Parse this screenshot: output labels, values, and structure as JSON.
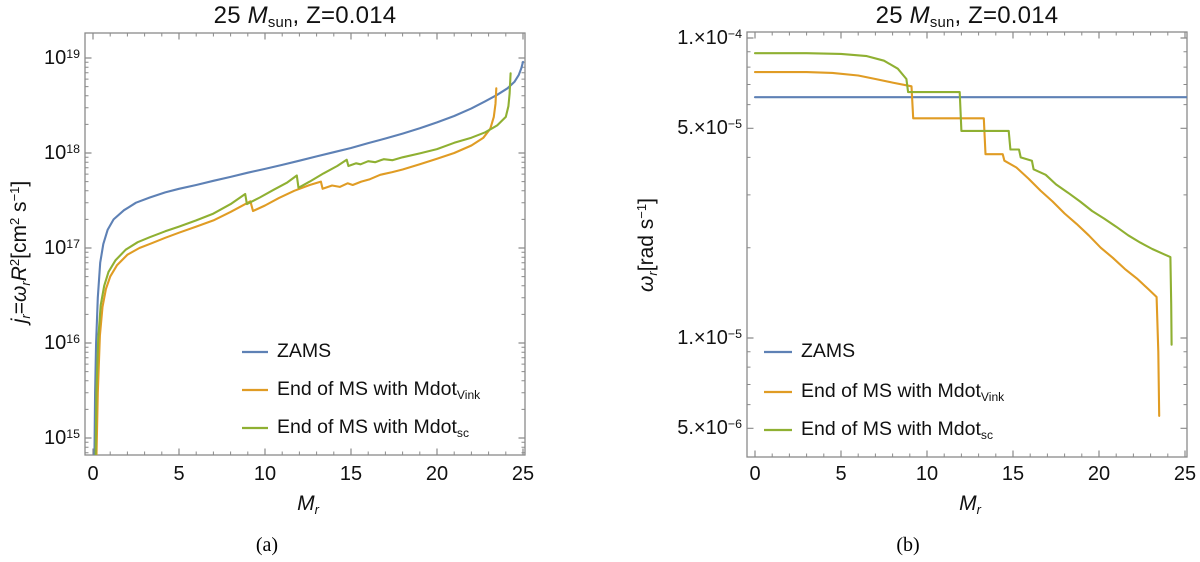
{
  "figure": {
    "background": "#ffffff",
    "captions": {
      "a": "(a)",
      "b": "(b)"
    },
    "frame_color": "#8a8a8a",
    "text_color": "#111111"
  },
  "chart_data": [
    {
      "id": "a",
      "type": "line",
      "title_parts": [
        {
          "t": "25 "
        },
        {
          "t": "M",
          "i": 1
        },
        {
          "t": "sun",
          "b": "sub"
        },
        {
          "t": ", Z=0.014"
        }
      ],
      "xlabel_parts": [
        {
          "t": "M",
          "i": 1
        },
        {
          "t": "r",
          "i": 1,
          "b": "sub"
        }
      ],
      "ylabel_parts": [
        {
          "t": "j",
          "i": 1
        },
        {
          "t": "r",
          "i": 1,
          "b": "sub"
        },
        {
          "t": "="
        },
        {
          "t": "ω",
          "i": 1
        },
        {
          "t": "r",
          "i": 1,
          "b": "sub"
        },
        {
          "t": "R",
          "i": 1
        },
        {
          "t": "2",
          "b": "sup"
        },
        {
          "t": "[cm"
        },
        {
          "t": "2",
          "b": "sup"
        },
        {
          "t": " s"
        },
        {
          "t": "−1",
          "b": "sup"
        },
        {
          "t": "]"
        }
      ],
      "xlim": [
        -0.47,
        25.12
      ],
      "ylog": true,
      "ylim": [
        660000000000000.0,
        1.85e+19
      ],
      "grid": false,
      "xticks": {
        "major": [
          0,
          5,
          10,
          15,
          20,
          25
        ],
        "minor_step": 1
      },
      "yticks_major": [
        {
          "v": 1e+19,
          "parts": [
            {
              "t": "10"
            },
            {
              "t": "19",
              "b": "sup"
            }
          ]
        },
        {
          "v": 1e+18,
          "parts": [
            {
              "t": "10"
            },
            {
              "t": "18",
              "b": "sup"
            }
          ]
        },
        {
          "v": 1e+17,
          "parts": [
            {
              "t": "10"
            },
            {
              "t": "17",
              "b": "sup"
            }
          ]
        },
        {
          "v": 1e+16,
          "parts": [
            {
              "t": "10"
            },
            {
              "t": "16",
              "b": "sup"
            }
          ]
        },
        {
          "v": 1000000000000000.0,
          "parts": [
            {
              "t": "10"
            },
            {
              "t": "15",
              "b": "sup"
            }
          ]
        }
      ],
      "legend_pos": "inside lower middle",
      "series": [
        {
          "name_parts": [
            {
              "t": "ZAMS"
            }
          ],
          "color": "#5E81B5",
          "points": [
            [
              0.08,
              600000000000000.0
            ],
            [
              0.12,
              3000000000000000.0
            ],
            [
              0.18,
              1e+16
            ],
            [
              0.28,
              3e+16
            ],
            [
              0.42,
              7e+16
            ],
            [
              0.6,
              1.1e+17
            ],
            [
              0.85,
              1.55e+17
            ],
            [
              1.2,
              2e+17
            ],
            [
              1.8,
              2.5e+17
            ],
            [
              2.5,
              3e+17
            ],
            [
              3.3,
              3.4e+17
            ],
            [
              4.2,
              3.85e+17
            ],
            [
              5,
              4.2e+17
            ],
            [
              6,
              4.6e+17
            ],
            [
              7,
              5.1e+17
            ],
            [
              8,
              5.6e+17
            ],
            [
              9,
              6.2e+17
            ],
            [
              10,
              6.8e+17
            ],
            [
              11,
              7.5e+17
            ],
            [
              12,
              8.3e+17
            ],
            [
              13,
              9.2e+17
            ],
            [
              14,
              1.02e+18
            ],
            [
              15,
              1.13e+18
            ],
            [
              16,
              1.27e+18
            ],
            [
              17,
              1.42e+18
            ],
            [
              18,
              1.6e+18
            ],
            [
              19,
              1.82e+18
            ],
            [
              20,
              2.1e+18
            ],
            [
              21,
              2.45e+18
            ],
            [
              22,
              2.95e+18
            ],
            [
              22.8,
              3.5e+18
            ],
            [
              23.5,
              4.1e+18
            ],
            [
              24.1,
              4.8e+18
            ],
            [
              24.5,
              5.6e+18
            ],
            [
              24.75,
              6.6e+18
            ],
            [
              24.9,
              7.8e+18
            ],
            [
              25,
              9.1e+18
            ]
          ]
        },
        {
          "name_parts": [
            {
              "t": "End of MS with Mdot"
            },
            {
              "t": "Vink",
              "b": "sub"
            }
          ],
          "color": "#E09C24",
          "points": [
            [
              0.2,
              600000000000000.0
            ],
            [
              0.28,
              3000000000000000.0
            ],
            [
              0.4,
              1.2e+16
            ],
            [
              0.55,
              2.4e+16
            ],
            [
              0.75,
              3.7e+16
            ],
            [
              1.0,
              5e+16
            ],
            [
              1.4,
              6.6e+16
            ],
            [
              2.0,
              8.5e+16
            ],
            [
              2.7,
              1e+17
            ],
            [
              3.4,
              1.12e+17
            ],
            [
              4.2,
              1.28e+17
            ],
            [
              5,
              1.45e+17
            ],
            [
              6,
              1.68e+17
            ],
            [
              7,
              1.95e+17
            ],
            [
              8,
              2.4e+17
            ],
            [
              9.15,
              3.1e+17
            ],
            [
              9.3,
              2.45e+17
            ],
            [
              10,
              2.8e+17
            ],
            [
              10.8,
              3.35e+17
            ],
            [
              11.7,
              4e+17
            ],
            [
              12.6,
              4.6e+17
            ],
            [
              13.25,
              5e+17
            ],
            [
              13.35,
              4.2e+17
            ],
            [
              13.9,
              4.55e+17
            ],
            [
              14.35,
              4.4e+17
            ],
            [
              14.8,
              4.8e+17
            ],
            [
              15.1,
              4.6e+17
            ],
            [
              15.6,
              5e+17
            ],
            [
              16.1,
              5.3e+17
            ],
            [
              16.7,
              5.9e+17
            ],
            [
              17.4,
              6.3e+17
            ],
            [
              18,
              6.7e+17
            ],
            [
              19,
              7.6e+17
            ],
            [
              20,
              8.7e+17
            ],
            [
              21,
              1e+18
            ],
            [
              22,
              1.2e+18
            ],
            [
              22.7,
              1.45e+18
            ],
            [
              23.1,
              1.8e+18
            ],
            [
              23.3,
              2.4e+18
            ],
            [
              23.4,
              3.3e+18
            ],
            [
              23.45,
              4.8e+18
            ]
          ]
        },
        {
          "name_parts": [
            {
              "t": "End of MS with Mdot"
            },
            {
              "t": "sc",
              "b": "sub"
            }
          ],
          "color": "#8FB032",
          "points": [
            [
              0.15,
              600000000000000.0
            ],
            [
              0.2,
              3000000000000000.0
            ],
            [
              0.3,
              1.1e+16
            ],
            [
              0.45,
              2.5e+16
            ],
            [
              0.65,
              4e+16
            ],
            [
              0.9,
              5.6e+16
            ],
            [
              1.3,
              7.4e+16
            ],
            [
              1.9,
              9.6e+16
            ],
            [
              2.6,
              1.15e+17
            ],
            [
              3.3,
              1.3e+17
            ],
            [
              4.2,
              1.5e+17
            ],
            [
              5,
              1.68e+17
            ],
            [
              6,
              1.95e+17
            ],
            [
              7,
              2.3e+17
            ],
            [
              8,
              2.9e+17
            ],
            [
              8.85,
              3.7e+17
            ],
            [
              8.95,
              2.9e+17
            ],
            [
              9.7,
              3.4e+17
            ],
            [
              10.5,
              4.1e+17
            ],
            [
              11.3,
              4.9e+17
            ],
            [
              11.85,
              5.8e+17
            ],
            [
              11.95,
              4.3e+17
            ],
            [
              12.6,
              5e+17
            ],
            [
              13.4,
              6.1e+17
            ],
            [
              14.2,
              7.3e+17
            ],
            [
              14.75,
              8.5e+17
            ],
            [
              14.85,
              7.3e+17
            ],
            [
              15.3,
              7.8e+17
            ],
            [
              15.55,
              7.6e+17
            ],
            [
              16,
              8.2e+17
            ],
            [
              16.4,
              8e+17
            ],
            [
              16.9,
              8.6e+17
            ],
            [
              17.4,
              8.4e+17
            ],
            [
              18,
              9e+17
            ],
            [
              19,
              9.9e+17
            ],
            [
              20,
              1.1e+18
            ],
            [
              21,
              1.28e+18
            ],
            [
              22,
              1.45e+18
            ],
            [
              22.8,
              1.65e+18
            ],
            [
              23.5,
              1.95e+18
            ],
            [
              24,
              2.4e+18
            ],
            [
              24.15,
              3.1e+18
            ],
            [
              24.22,
              4.2e+18
            ],
            [
              24.28,
              6.9e+18
            ]
          ]
        }
      ]
    },
    {
      "id": "b",
      "type": "line",
      "title_parts": [
        {
          "t": "25 "
        },
        {
          "t": "M",
          "i": 1
        },
        {
          "t": "sun",
          "b": "sub"
        },
        {
          "t": ", Z=0.014"
        }
      ],
      "xlabel_parts": [
        {
          "t": "M",
          "i": 1
        },
        {
          "t": "r",
          "i": 1,
          "b": "sub"
        }
      ],
      "ylabel_parts": [
        {
          "t": "ω",
          "i": 1
        },
        {
          "t": "r",
          "i": 1,
          "b": "sub"
        },
        {
          "t": "[rad s"
        },
        {
          "t": "−1",
          "b": "sup"
        },
        {
          "t": "]"
        }
      ],
      "xlim": [
        -0.47,
        25.12
      ],
      "ylog": true,
      "ylim": [
        4.05e-06,
        0.0001047
      ],
      "grid": false,
      "xticks": {
        "major": [
          0,
          5,
          10,
          15,
          20,
          25
        ],
        "minor_step": 1
      },
      "yticks_major": [
        {
          "v": 0.0001,
          "parts": [
            {
              "t": "1.×10"
            },
            {
              "t": "−4",
              "b": "sup"
            }
          ]
        },
        {
          "v": 5e-05,
          "parts": [
            {
              "t": "5.×10"
            },
            {
              "t": "−5",
              "b": "sup"
            }
          ]
        },
        {
          "v": 1e-05,
          "parts": [
            {
              "t": "1.×10"
            },
            {
              "t": "−5",
              "b": "sup"
            }
          ]
        },
        {
          "v": 5e-06,
          "parts": [
            {
              "t": "5.×10"
            },
            {
              "t": "−6",
              "b": "sup"
            }
          ]
        }
      ],
      "legend_pos": "inside lower left",
      "series": [
        {
          "name_parts": [
            {
              "t": "ZAMS"
            }
          ],
          "color": "#5E81B5",
          "points": [
            [
              0,
              6.35e-05
            ],
            [
              25.1,
              6.35e-05
            ]
          ]
        },
        {
          "name_parts": [
            {
              "t": "End of MS with Mdot"
            },
            {
              "t": "Vink",
              "b": "sub"
            }
          ],
          "color": "#E09C24",
          "points": [
            [
              0,
              7.7e-05
            ],
            [
              3,
              7.7e-05
            ],
            [
              4.5,
              7.65e-05
            ],
            [
              6,
              7.5e-05
            ],
            [
              7,
              7.3e-05
            ],
            [
              8,
              7.1e-05
            ],
            [
              9.1,
              6.9e-05
            ],
            [
              9.2,
              5.4e-05
            ],
            [
              13.3,
              5.4e-05
            ],
            [
              13.4,
              4.1e-05
            ],
            [
              14.4,
              4.1e-05
            ],
            [
              14.5,
              3.9e-05
            ],
            [
              15.2,
              3.7e-05
            ],
            [
              15.9,
              3.4e-05
            ],
            [
              16.6,
              3.1e-05
            ],
            [
              17.3,
              2.85e-05
            ],
            [
              18,
              2.6e-05
            ],
            [
              18.7,
              2.4e-05
            ],
            [
              19.4,
              2.2e-05
            ],
            [
              20.1,
              2e-05
            ],
            [
              20.8,
              1.85e-05
            ],
            [
              21.5,
              1.7e-05
            ],
            [
              22.2,
              1.58e-05
            ],
            [
              22.9,
              1.45e-05
            ],
            [
              23.35,
              1.37e-05
            ],
            [
              23.45,
              9e-06
            ],
            [
              23.5,
              5.5e-06
            ]
          ]
        },
        {
          "name_parts": [
            {
              "t": "End of MS with Mdot"
            },
            {
              "t": "sc",
              "b": "sub"
            }
          ],
          "color": "#8FB032",
          "points": [
            [
              0,
              8.9e-05
            ],
            [
              3,
              8.9e-05
            ],
            [
              5,
              8.85e-05
            ],
            [
              6.5,
              8.7e-05
            ],
            [
              7.5,
              8.4e-05
            ],
            [
              8.3,
              7.9e-05
            ],
            [
              8.8,
              7.3e-05
            ],
            [
              8.9,
              6.6e-05
            ],
            [
              11.9,
              6.6e-05
            ],
            [
              12.0,
              4.9e-05
            ],
            [
              14.75,
              4.9e-05
            ],
            [
              14.85,
              4.25e-05
            ],
            [
              15.35,
              4.25e-05
            ],
            [
              15.45,
              4e-05
            ],
            [
              16.1,
              3.9e-05
            ],
            [
              16.2,
              3.65e-05
            ],
            [
              16.9,
              3.5e-05
            ],
            [
              17.5,
              3.25e-05
            ],
            [
              18.2,
              3.05e-05
            ],
            [
              18.9,
              2.85e-05
            ],
            [
              19.6,
              2.65e-05
            ],
            [
              20.3,
              2.5e-05
            ],
            [
              21,
              2.35e-05
            ],
            [
              21.7,
              2.2e-05
            ],
            [
              22.4,
              2.08e-05
            ],
            [
              23.1,
              1.98e-05
            ],
            [
              23.8,
              1.9e-05
            ],
            [
              24.15,
              1.86e-05
            ],
            [
              24.2,
              1.3e-05
            ],
            [
              24.22,
              9.5e-06
            ]
          ]
        }
      ]
    }
  ]
}
